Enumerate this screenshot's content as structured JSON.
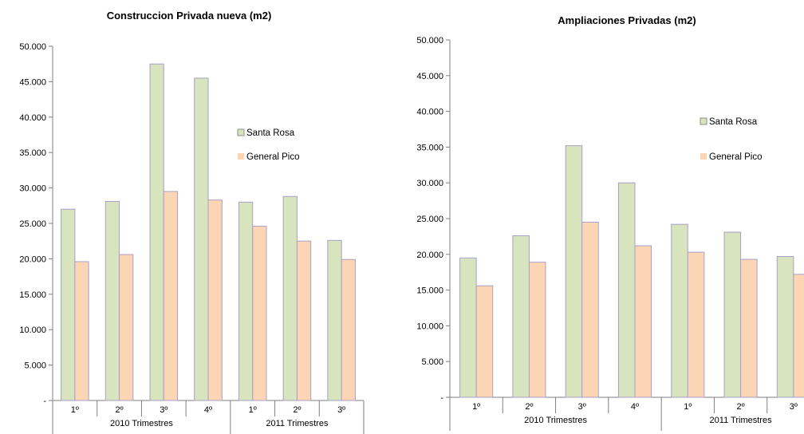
{
  "colors": {
    "santa_rosa": "#d7e4bd",
    "general_pico": "#fcd5b5",
    "bar_edge": "#a9a0c8",
    "axis": "#7f7f7f"
  },
  "chart_data": [
    {
      "type": "bar",
      "title": "Construccion Privada nueva (m2)",
      "xlabel": "",
      "ylabel": "",
      "ylim": [
        0,
        50000
      ],
      "yticks": [
        0,
        5000,
        10000,
        15000,
        20000,
        25000,
        30000,
        35000,
        40000,
        45000,
        50000
      ],
      "ytick_labels": [
        "-",
        "5.000",
        "10.000",
        "15.000",
        "20.000",
        "25.000",
        "30.000",
        "35.000",
        "40.000",
        "45.000",
        "50.000"
      ],
      "categories": [
        "1º",
        "2º",
        "3º",
        "4º",
        "1º",
        "2º",
        "3º"
      ],
      "groups": [
        {
          "label": "2010 Trimestres",
          "count": 4
        },
        {
          "label": "2011 Trimestres",
          "count": 3
        }
      ],
      "series": [
        {
          "name": "Santa Rosa",
          "values": [
            27000,
            28100,
            47500,
            45500,
            28000,
            28800,
            22600
          ]
        },
        {
          "name": "General  Pico",
          "values": [
            19600,
            20600,
            29500,
            28300,
            24600,
            22500,
            19900
          ]
        }
      ],
      "legend": "right",
      "grid": false
    },
    {
      "type": "bar",
      "title": "Ampliaciones Privadas (m2)",
      "xlabel": "",
      "ylabel": "",
      "ylim": [
        0,
        50000
      ],
      "yticks": [
        0,
        5000,
        10000,
        15000,
        20000,
        25000,
        30000,
        35000,
        40000,
        45000,
        50000
      ],
      "ytick_labels": [
        "-",
        "5.000",
        "10.000",
        "15.000",
        "20.000",
        "25.000",
        "30.000",
        "35.000",
        "40.000",
        "45.000",
        "50.000"
      ],
      "categories": [
        "1º",
        "2º",
        "3º",
        "4º",
        "1º",
        "2º",
        "3º"
      ],
      "groups": [
        {
          "label": "2010 Trimestres",
          "count": 4
        },
        {
          "label": "2011 Trimestres",
          "count": 3
        }
      ],
      "series": [
        {
          "name": "Santa Rosa",
          "values": [
            19500,
            22600,
            35200,
            30000,
            24200,
            23100,
            19700
          ]
        },
        {
          "name": "General  Pico",
          "values": [
            15600,
            18900,
            24500,
            21200,
            20300,
            19300,
            17200
          ]
        }
      ],
      "legend": "right",
      "grid": false
    }
  ]
}
